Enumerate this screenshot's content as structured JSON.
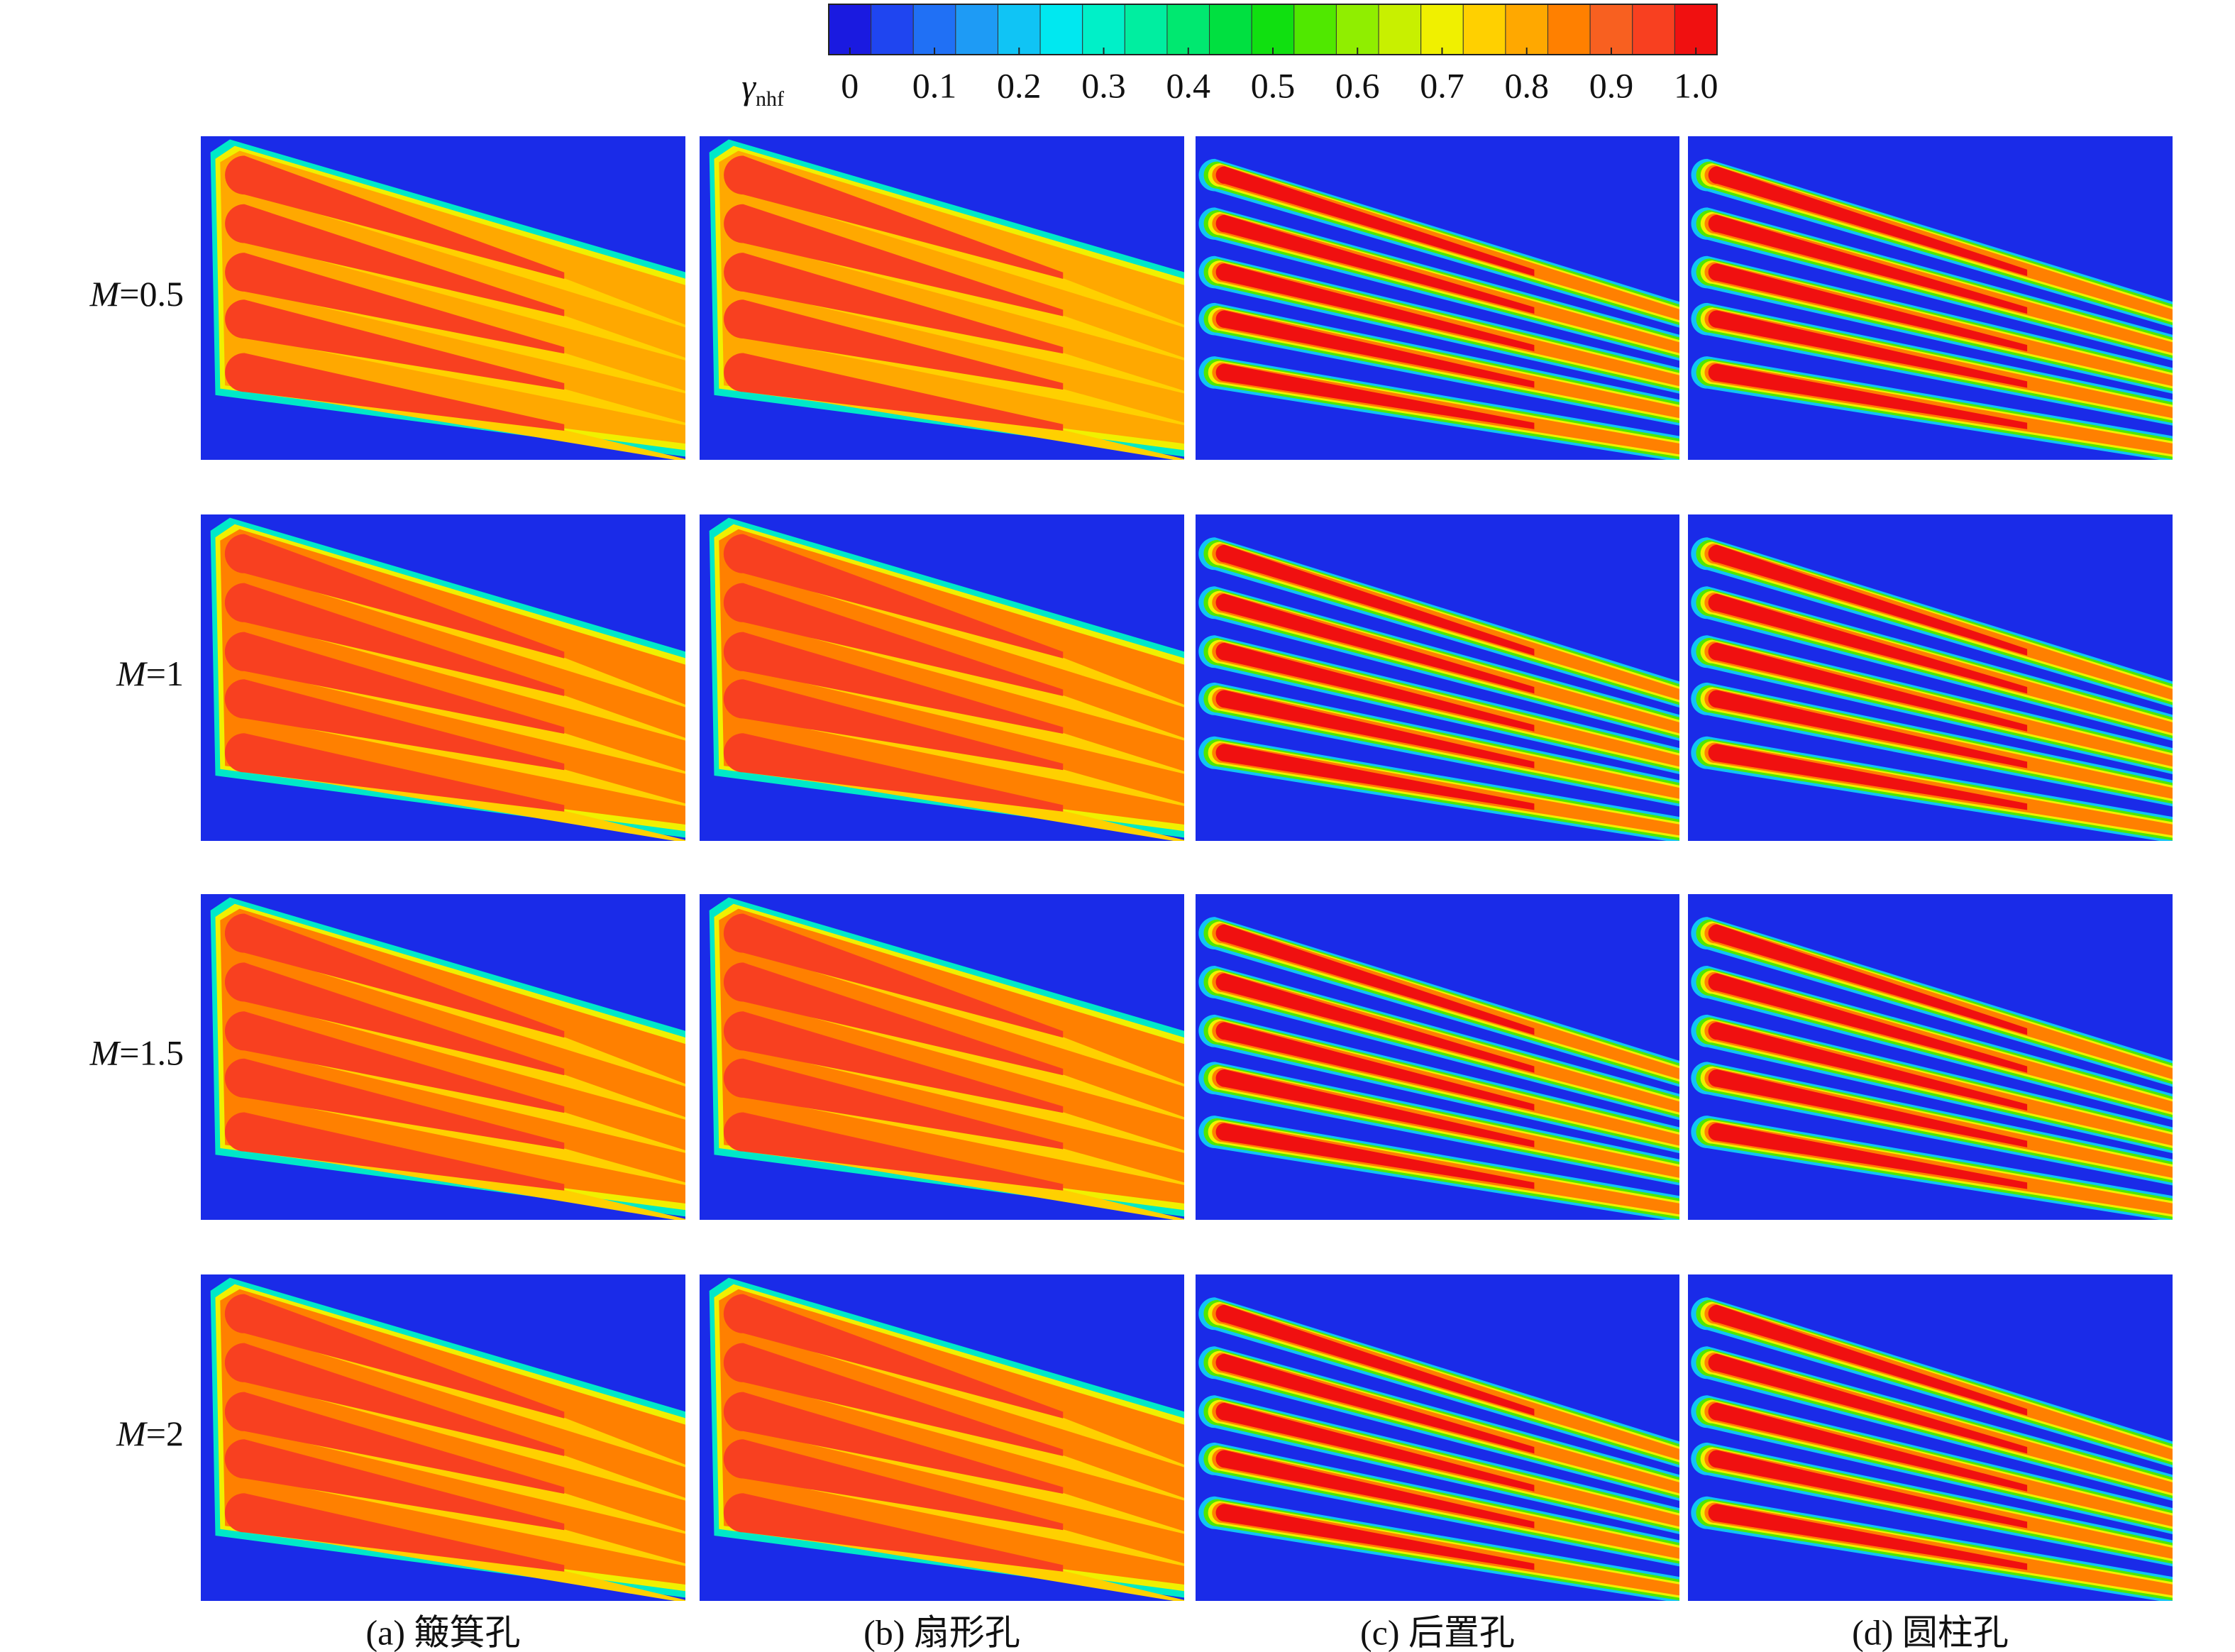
{
  "chart_data": {
    "type": "contour-grid",
    "colorbar": {
      "label": {
        "symbol": "γ",
        "subscript": "nhf"
      },
      "lim": [
        -0.025,
        1.025
      ],
      "ticks": [
        0,
        0.1,
        0.2,
        0.3,
        0.4,
        0.5,
        0.6,
        0.7,
        0.8,
        0.9,
        {
          "value": 1,
          "label": "1.0"
        }
      ],
      "colors": [
        "#1a1ae0",
        "#1f45f0",
        "#2070f5",
        "#1e9bf5",
        "#10c4f5",
        "#00e8f0",
        "#00f0c8",
        "#00eea0",
        "#00e870",
        "#00e040",
        "#10e010",
        "#50e800",
        "#90ee00",
        "#c8f000",
        "#f0f000",
        "#ffd000",
        "#ffa800",
        "#ff8000",
        "#f86020",
        "#f84020",
        "#f01010"
      ]
    },
    "rows": [
      {
        "symbol": "M",
        "text": "=0.5"
      },
      {
        "symbol": "M",
        "text": "=1"
      },
      {
        "symbol": "M",
        "text": "=1.5"
      },
      {
        "symbol": "M",
        "text": "=2"
      }
    ],
    "columns": [
      "(a) 簸箕孔",
      "(b) 扇形孔",
      "(c) 后置孔",
      "(d) 圆柱孔"
    ]
  }
}
